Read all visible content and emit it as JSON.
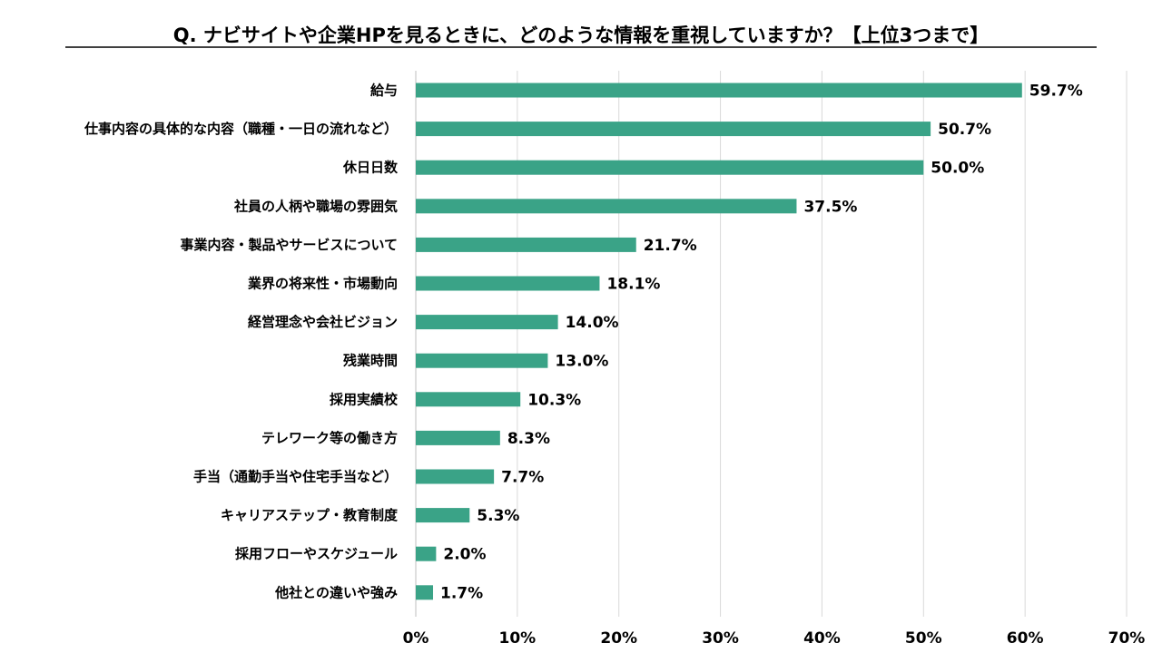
{
  "chart_data": {
    "type": "bar",
    "orientation": "horizontal",
    "title": "Q. ナビサイトや企業HPを見るときに、どのような情報を重視していますか？【上位3つまで】",
    "xlabel": "",
    "ylabel": "",
    "xlim": [
      0,
      70
    ],
    "x_ticks": [
      "0%",
      "10%",
      "20%",
      "30%",
      "40%",
      "50%",
      "60%",
      "70%"
    ],
    "grid": true,
    "bar_color": "#3aa387",
    "categories": [
      "給与",
      "仕事内容の具体的な内容（職種・一日の流れなど）",
      "休日日数",
      "社員の人柄や職場の雰囲気",
      "事業内容・製品やサービスについて",
      "業界の将来性・市場動向",
      "経営理念や会社ビジョン",
      "残業時間",
      "採用実績校",
      "テレワーク等の働き方",
      "手当（通勤手当や住宅手当など）",
      "キャリアステップ・教育制度",
      "採用フローやスケジュール",
      "他社との違いや強み"
    ],
    "values": [
      59.7,
      50.7,
      50.0,
      37.5,
      21.7,
      18.1,
      14.0,
      13.0,
      10.3,
      8.3,
      7.7,
      5.3,
      2.0,
      1.7
    ],
    "value_labels": [
      "59.7%",
      "50.7%",
      "50.0%",
      "37.5%",
      "21.7%",
      "18.1%",
      "14.0%",
      "13.0%",
      "10.3%",
      "8.3%",
      "7.7%",
      "5.3%",
      "2.0%",
      "1.7%"
    ]
  }
}
